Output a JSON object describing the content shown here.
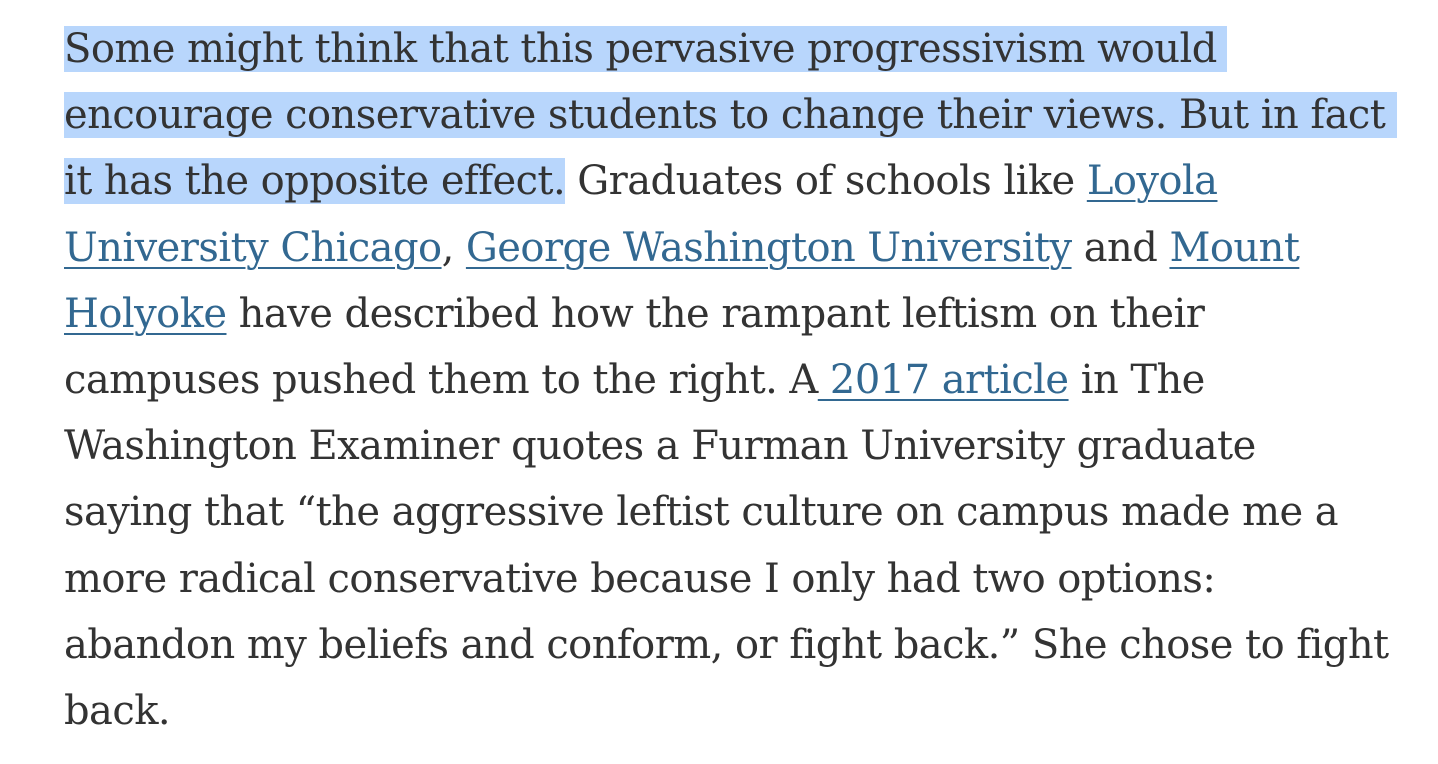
{
  "paragraph": {
    "highlighted_lines": [
      "Some might think that this pervasive progressivism would",
      "encourage conservative students to change their views. But in fact",
      "it has the opposite effect."
    ],
    "text_after_highlight": " Graduates of schools like ",
    "link_loyola_part1": "Loyola",
    "link_loyola_part2": "University Chicago",
    "text_comma": ", ",
    "link_gwu": "George Washington University",
    "text_and": " and ",
    "link_mount_holyoke_part1": "Mount",
    "link_mount_holyoke_part2": "Holyoke",
    "line5_rest": " have described how the rampant leftism on their",
    "line6_start": "campuses pushed them to the right. A",
    "link_2017_article": " 2017 article",
    "line6_end": " in The",
    "line7": "Washington Examiner quotes a Furman University graduate",
    "line8": "saying that “the aggressive leftist culture on campus made me a",
    "line9": "more radical conservative because I only had two options:",
    "line10": "abandon my beliefs and conform, or fight back.” She chose to fight",
    "line11": "back."
  },
  "colors": {
    "text": "#333333",
    "link": "#326891",
    "selection_highlight": "#b8d6fc",
    "background": "#ffffff"
  }
}
